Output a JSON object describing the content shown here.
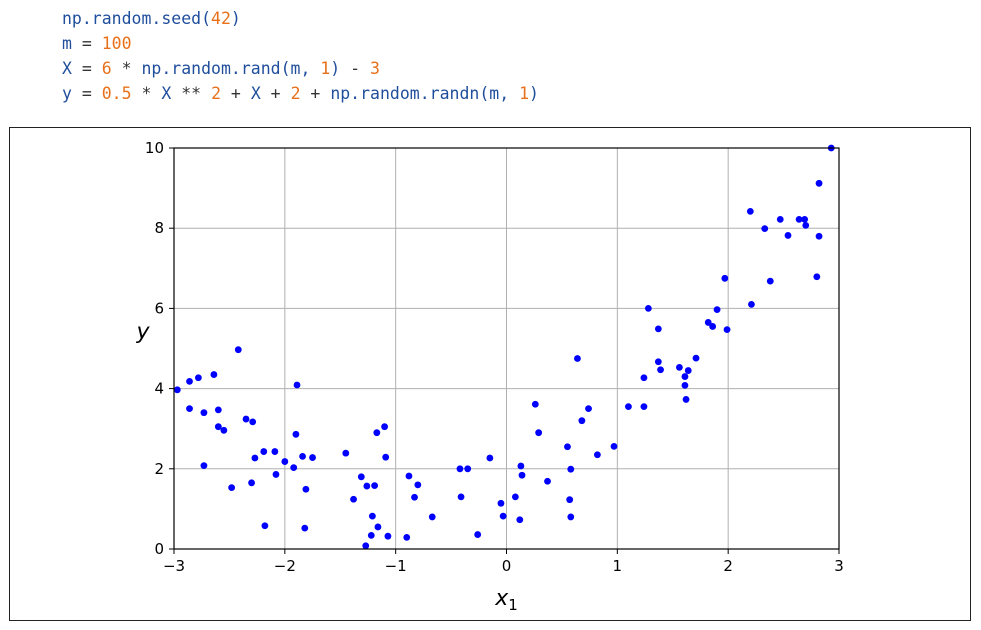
{
  "code": {
    "lines": [
      [
        {
          "t": "np.random.seed(",
          "k": "id"
        },
        {
          "t": "42",
          "k": "num"
        },
        {
          "t": ")",
          "k": "id"
        }
      ],
      [
        {
          "t": "m",
          "k": "id"
        },
        {
          "t": " = ",
          "k": "op"
        },
        {
          "t": "100",
          "k": "num"
        }
      ],
      [
        {
          "t": "X",
          "k": "id"
        },
        {
          "t": " = ",
          "k": "op"
        },
        {
          "t": "6",
          "k": "num"
        },
        {
          "t": " * ",
          "k": "op"
        },
        {
          "t": "np.random.rand(m, ",
          "k": "id"
        },
        {
          "t": "1",
          "k": "num"
        },
        {
          "t": ")",
          "k": "id"
        },
        {
          "t": " - ",
          "k": "op"
        },
        {
          "t": "3",
          "k": "num"
        }
      ],
      [
        {
          "t": "y",
          "k": "id"
        },
        {
          "t": " = ",
          "k": "op"
        },
        {
          "t": "0.5",
          "k": "num"
        },
        {
          "t": " * ",
          "k": "op"
        },
        {
          "t": "X",
          "k": "id"
        },
        {
          "t": " ** ",
          "k": "op"
        },
        {
          "t": "2",
          "k": "num"
        },
        {
          "t": " + ",
          "k": "op"
        },
        {
          "t": "X",
          "k": "id"
        },
        {
          "t": " + ",
          "k": "op"
        },
        {
          "t": "2",
          "k": "num"
        },
        {
          "t": " + ",
          "k": "op"
        },
        {
          "t": "np.random.randn(m, ",
          "k": "id"
        },
        {
          "t": "1",
          "k": "num"
        },
        {
          "t": ")",
          "k": "id"
        }
      ]
    ],
    "colors": {
      "id": "#1f4e9c",
      "num": "#e8701a",
      "op": "#333333"
    }
  },
  "chart_data": {
    "type": "scatter",
    "xlabel": "x1",
    "ylabel": "y",
    "xlim": [
      -3,
      3
    ],
    "ylim": [
      0,
      10
    ],
    "xticks": [
      -3,
      -2,
      -1,
      0,
      1,
      2,
      3
    ],
    "xtick_labels": [
      "−3",
      "−2",
      "−1",
      "0",
      "1",
      "2",
      "3"
    ],
    "yticks": [
      0,
      2,
      4,
      6,
      8,
      10
    ],
    "ytick_labels": [
      "0",
      "2",
      "4",
      "6",
      "8",
      "10"
    ],
    "grid": true,
    "marker_color": "#0000ff",
    "grid_color": "#b0b0b0",
    "points": [
      [
        -2.97,
        3.97
      ],
      [
        -2.86,
        4.18
      ],
      [
        -2.78,
        4.27
      ],
      [
        -2.64,
        4.35
      ],
      [
        -2.86,
        3.5
      ],
      [
        -2.73,
        3.4
      ],
      [
        -2.6,
        3.47
      ],
      [
        -2.6,
        3.05
      ],
      [
        -2.55,
        2.96
      ],
      [
        -2.73,
        2.08
      ],
      [
        -2.48,
        1.53
      ],
      [
        -2.42,
        4.97
      ],
      [
        -2.35,
        3.24
      ],
      [
        -2.29,
        3.17
      ],
      [
        -2.27,
        2.27
      ],
      [
        -2.3,
        1.65
      ],
      [
        -2.19,
        2.43
      ],
      [
        -2.09,
        2.43
      ],
      [
        -2.08,
        1.86
      ],
      [
        -2.0,
        2.18
      ],
      [
        -1.92,
        2.03
      ],
      [
        -1.9,
        2.86
      ],
      [
        -1.89,
        4.09
      ],
      [
        -1.84,
        2.31
      ],
      [
        -1.81,
        1.49
      ],
      [
        -1.75,
        2.28
      ],
      [
        -2.18,
        0.58
      ],
      [
        -1.82,
        0.52
      ],
      [
        -1.45,
        2.39
      ],
      [
        -1.38,
        1.24
      ],
      [
        -1.31,
        1.8
      ],
      [
        -1.26,
        1.57
      ],
      [
        -1.19,
        1.58
      ],
      [
        -1.21,
        0.82
      ],
      [
        -1.16,
        0.55
      ],
      [
        -1.27,
        0.08
      ],
      [
        -1.22,
        0.34
      ],
      [
        -1.17,
        2.9
      ],
      [
        -1.1,
        3.05
      ],
      [
        -1.09,
        2.29
      ],
      [
        -1.07,
        0.32
      ],
      [
        -0.88,
        1.82
      ],
      [
        -0.8,
        1.6
      ],
      [
        -0.83,
        1.29
      ],
      [
        -0.9,
        0.29
      ],
      [
        -0.67,
        0.8
      ],
      [
        -0.42,
        2.0
      ],
      [
        -0.35,
        2.0
      ],
      [
        -0.41,
        1.3
      ],
      [
        -0.15,
        2.27
      ],
      [
        -0.26,
        0.36
      ],
      [
        -0.05,
        1.14
      ],
      [
        -0.03,
        0.82
      ],
      [
        0.08,
        1.3
      ],
      [
        0.12,
        0.73
      ],
      [
        0.13,
        2.07
      ],
      [
        0.14,
        1.84
      ],
      [
        0.26,
        3.61
      ],
      [
        0.29,
        2.9
      ],
      [
        0.37,
        1.69
      ],
      [
        0.55,
        2.55
      ],
      [
        0.58,
        1.99
      ],
      [
        0.57,
        1.23
      ],
      [
        0.58,
        0.8
      ],
      [
        0.64,
        4.75
      ],
      [
        0.68,
        3.2
      ],
      [
        0.74,
        3.5
      ],
      [
        0.82,
        2.35
      ],
      [
        0.97,
        2.56
      ],
      [
        1.1,
        3.55
      ],
      [
        1.24,
        3.55
      ],
      [
        1.24,
        4.27
      ],
      [
        1.28,
        6.0
      ],
      [
        1.37,
        5.49
      ],
      [
        1.37,
        4.67
      ],
      [
        1.39,
        4.47
      ],
      [
        1.56,
        4.53
      ],
      [
        1.61,
        4.3
      ],
      [
        1.64,
        4.45
      ],
      [
        1.61,
        4.08
      ],
      [
        1.62,
        3.73
      ],
      [
        1.71,
        4.76
      ],
      [
        1.82,
        5.65
      ],
      [
        1.86,
        5.55
      ],
      [
        1.9,
        5.97
      ],
      [
        1.97,
        6.75
      ],
      [
        1.99,
        5.47
      ],
      [
        2.2,
        8.42
      ],
      [
        2.21,
        6.1
      ],
      [
        2.33,
        7.99
      ],
      [
        2.38,
        6.68
      ],
      [
        2.47,
        8.22
      ],
      [
        2.54,
        7.82
      ],
      [
        2.64,
        8.22
      ],
      [
        2.69,
        8.22
      ],
      [
        2.7,
        8.07
      ],
      [
        2.8,
        6.79
      ],
      [
        2.82,
        7.8
      ],
      [
        2.82,
        9.12
      ],
      [
        2.93,
        10.0
      ]
    ]
  }
}
